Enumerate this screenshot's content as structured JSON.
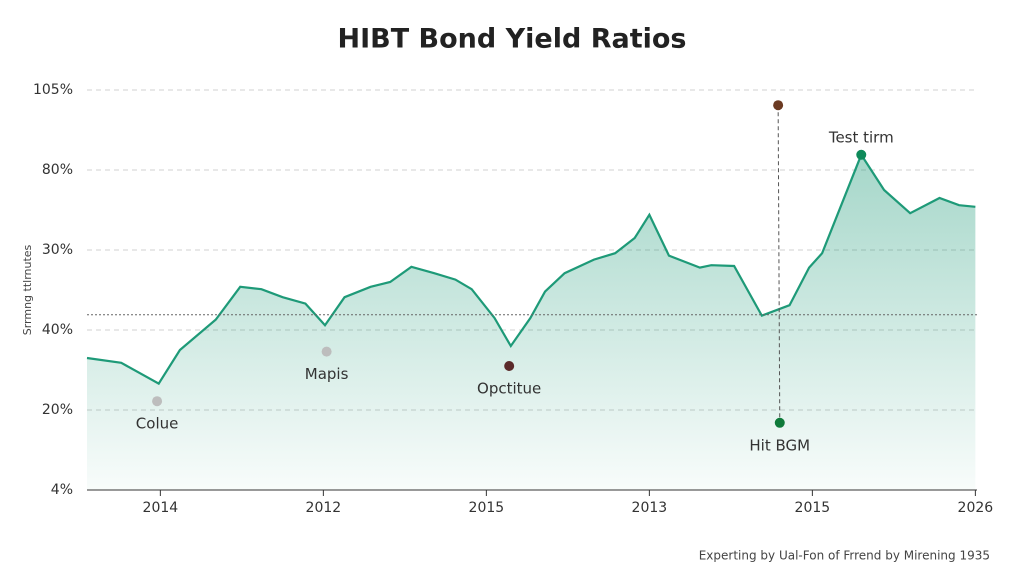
{
  "chart_data": {
    "type": "area",
    "title": "HIBT Bond Yield Ratios",
    "y_label": "Srrmng ttlrnutes",
    "footer": "Experting by Ual-Fon of Frrend by Mirening 1935",
    "color": "#1e9a78",
    "grid": true,
    "xlim": [
      -0.45,
      5.01
    ],
    "ylim": [
      0,
      5
    ],
    "xticks": [
      {
        "value": 0,
        "label": "2014"
      },
      {
        "value": 1,
        "label": "2012"
      },
      {
        "value": 2,
        "label": "2015"
      },
      {
        "value": 3,
        "label": "2013"
      },
      {
        "value": 4,
        "label": "2015"
      },
      {
        "value": 5,
        "label": "2026"
      }
    ],
    "yticks": [
      {
        "value": 0,
        "label": "4%"
      },
      {
        "value": 1,
        "label": "20%"
      },
      {
        "value": 2,
        "label": "40%"
      },
      {
        "value": 3,
        "label": "30%"
      },
      {
        "value": 4,
        "label": "80%"
      },
      {
        "value": 5,
        "label": "105%"
      }
    ],
    "x": [
      -0.45,
      -0.24,
      -0.01,
      0.12,
      0.34,
      0.49,
      0.62,
      0.75,
      0.89,
      1.01,
      1.13,
      1.29,
      1.41,
      1.54,
      1.68,
      1.81,
      1.91,
      2.05,
      2.15,
      2.27,
      2.36,
      2.48,
      2.66,
      2.79,
      2.91,
      3.0,
      3.12,
      3.31,
      3.38,
      3.52,
      3.69,
      3.86,
      3.98,
      4.06,
      4.3,
      4.44,
      4.6,
      4.78,
      4.9,
      5.0
    ],
    "values": [
      1.65,
      1.59,
      1.33,
      1.75,
      2.13,
      2.54,
      2.51,
      2.41,
      2.33,
      2.06,
      2.41,
      2.54,
      2.6,
      2.79,
      2.71,
      2.63,
      2.51,
      2.15,
      1.8,
      2.15,
      2.48,
      2.71,
      2.88,
      2.96,
      3.15,
      3.44,
      2.93,
      2.78,
      2.81,
      2.8,
      2.18,
      2.31,
      2.78,
      2.96,
      4.19,
      3.75,
      3.46,
      3.65,
      3.56,
      3.54
    ],
    "hline": 2.19,
    "annotations": [
      {
        "text": "Colue",
        "x": -0.02,
        "y": 1.11,
        "color": "#bdbdbd",
        "label_position": "below"
      },
      {
        "text": "Mapis",
        "x": 1.02,
        "y": 1.73,
        "color": "#bdbdbd",
        "label_position": "below"
      },
      {
        "text": "Opctitue",
        "x": 2.14,
        "y": 1.55,
        "color": "#5a2a2a",
        "label_position": "below"
      },
      {
        "text": "Hit BGM",
        "x": 3.8,
        "y": 0.84,
        "color": "#0e7a3a",
        "label_position": "below"
      },
      {
        "text": "Test tirm",
        "x": 4.3,
        "y": 4.19,
        "color": "#0e8a5a",
        "label_position": "above"
      }
    ],
    "points": [
      {
        "x": 3.79,
        "y": 4.81,
        "color": "#6b3a22"
      }
    ]
  }
}
